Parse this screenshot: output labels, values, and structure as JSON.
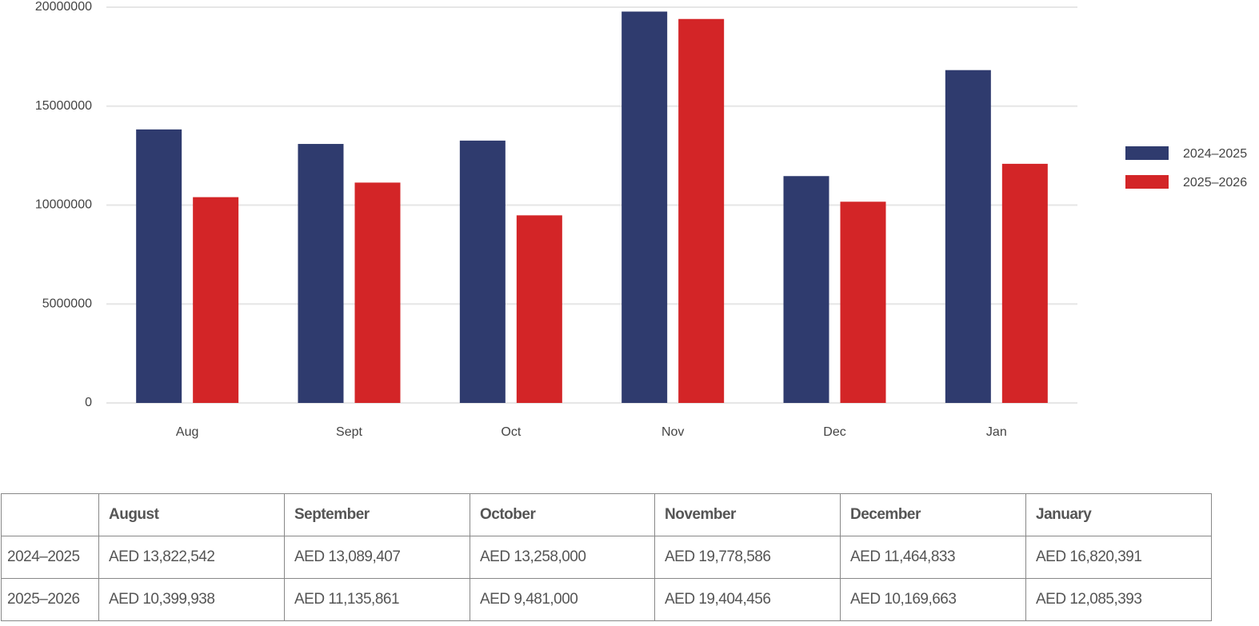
{
  "chart_data": {
    "type": "bar",
    "categories": [
      "Aug",
      "Sept",
      "Oct",
      "Nov",
      "Dec",
      "Jan"
    ],
    "series": [
      {
        "name": "2024–2025",
        "color": "#2f3b6e",
        "values": [
          13822542,
          13089407,
          13258000,
          19778586,
          11464833,
          16820391
        ]
      },
      {
        "name": "2025–2026",
        "color": "#d32527",
        "values": [
          10399938,
          11135861,
          9481000,
          19404456,
          10169663,
          12085393
        ]
      }
    ],
    "ylim": [
      0,
      20000000
    ],
    "yticks": [
      0,
      5000000,
      10000000,
      15000000,
      20000000
    ],
    "grid": true,
    "legend": "right"
  },
  "table": {
    "columns": [
      "August",
      "September",
      "October",
      "November",
      "December",
      "January"
    ],
    "rows": [
      {
        "label": "2024–2025",
        "cells": [
          "AED 13,822,542",
          "AED 13,089,407",
          "AED 13,258,000",
          "AED 19,778,586",
          "AED 11,464,833",
          "AED 16,820,391"
        ]
      },
      {
        "label": "2025–2026",
        "cells": [
          "AED 10,399,938",
          "AED 11,135,861",
          "AED 9,481,000",
          "AED 19,404,456",
          "AED 10,169,663",
          "AED 12,085,393"
        ]
      }
    ]
  }
}
